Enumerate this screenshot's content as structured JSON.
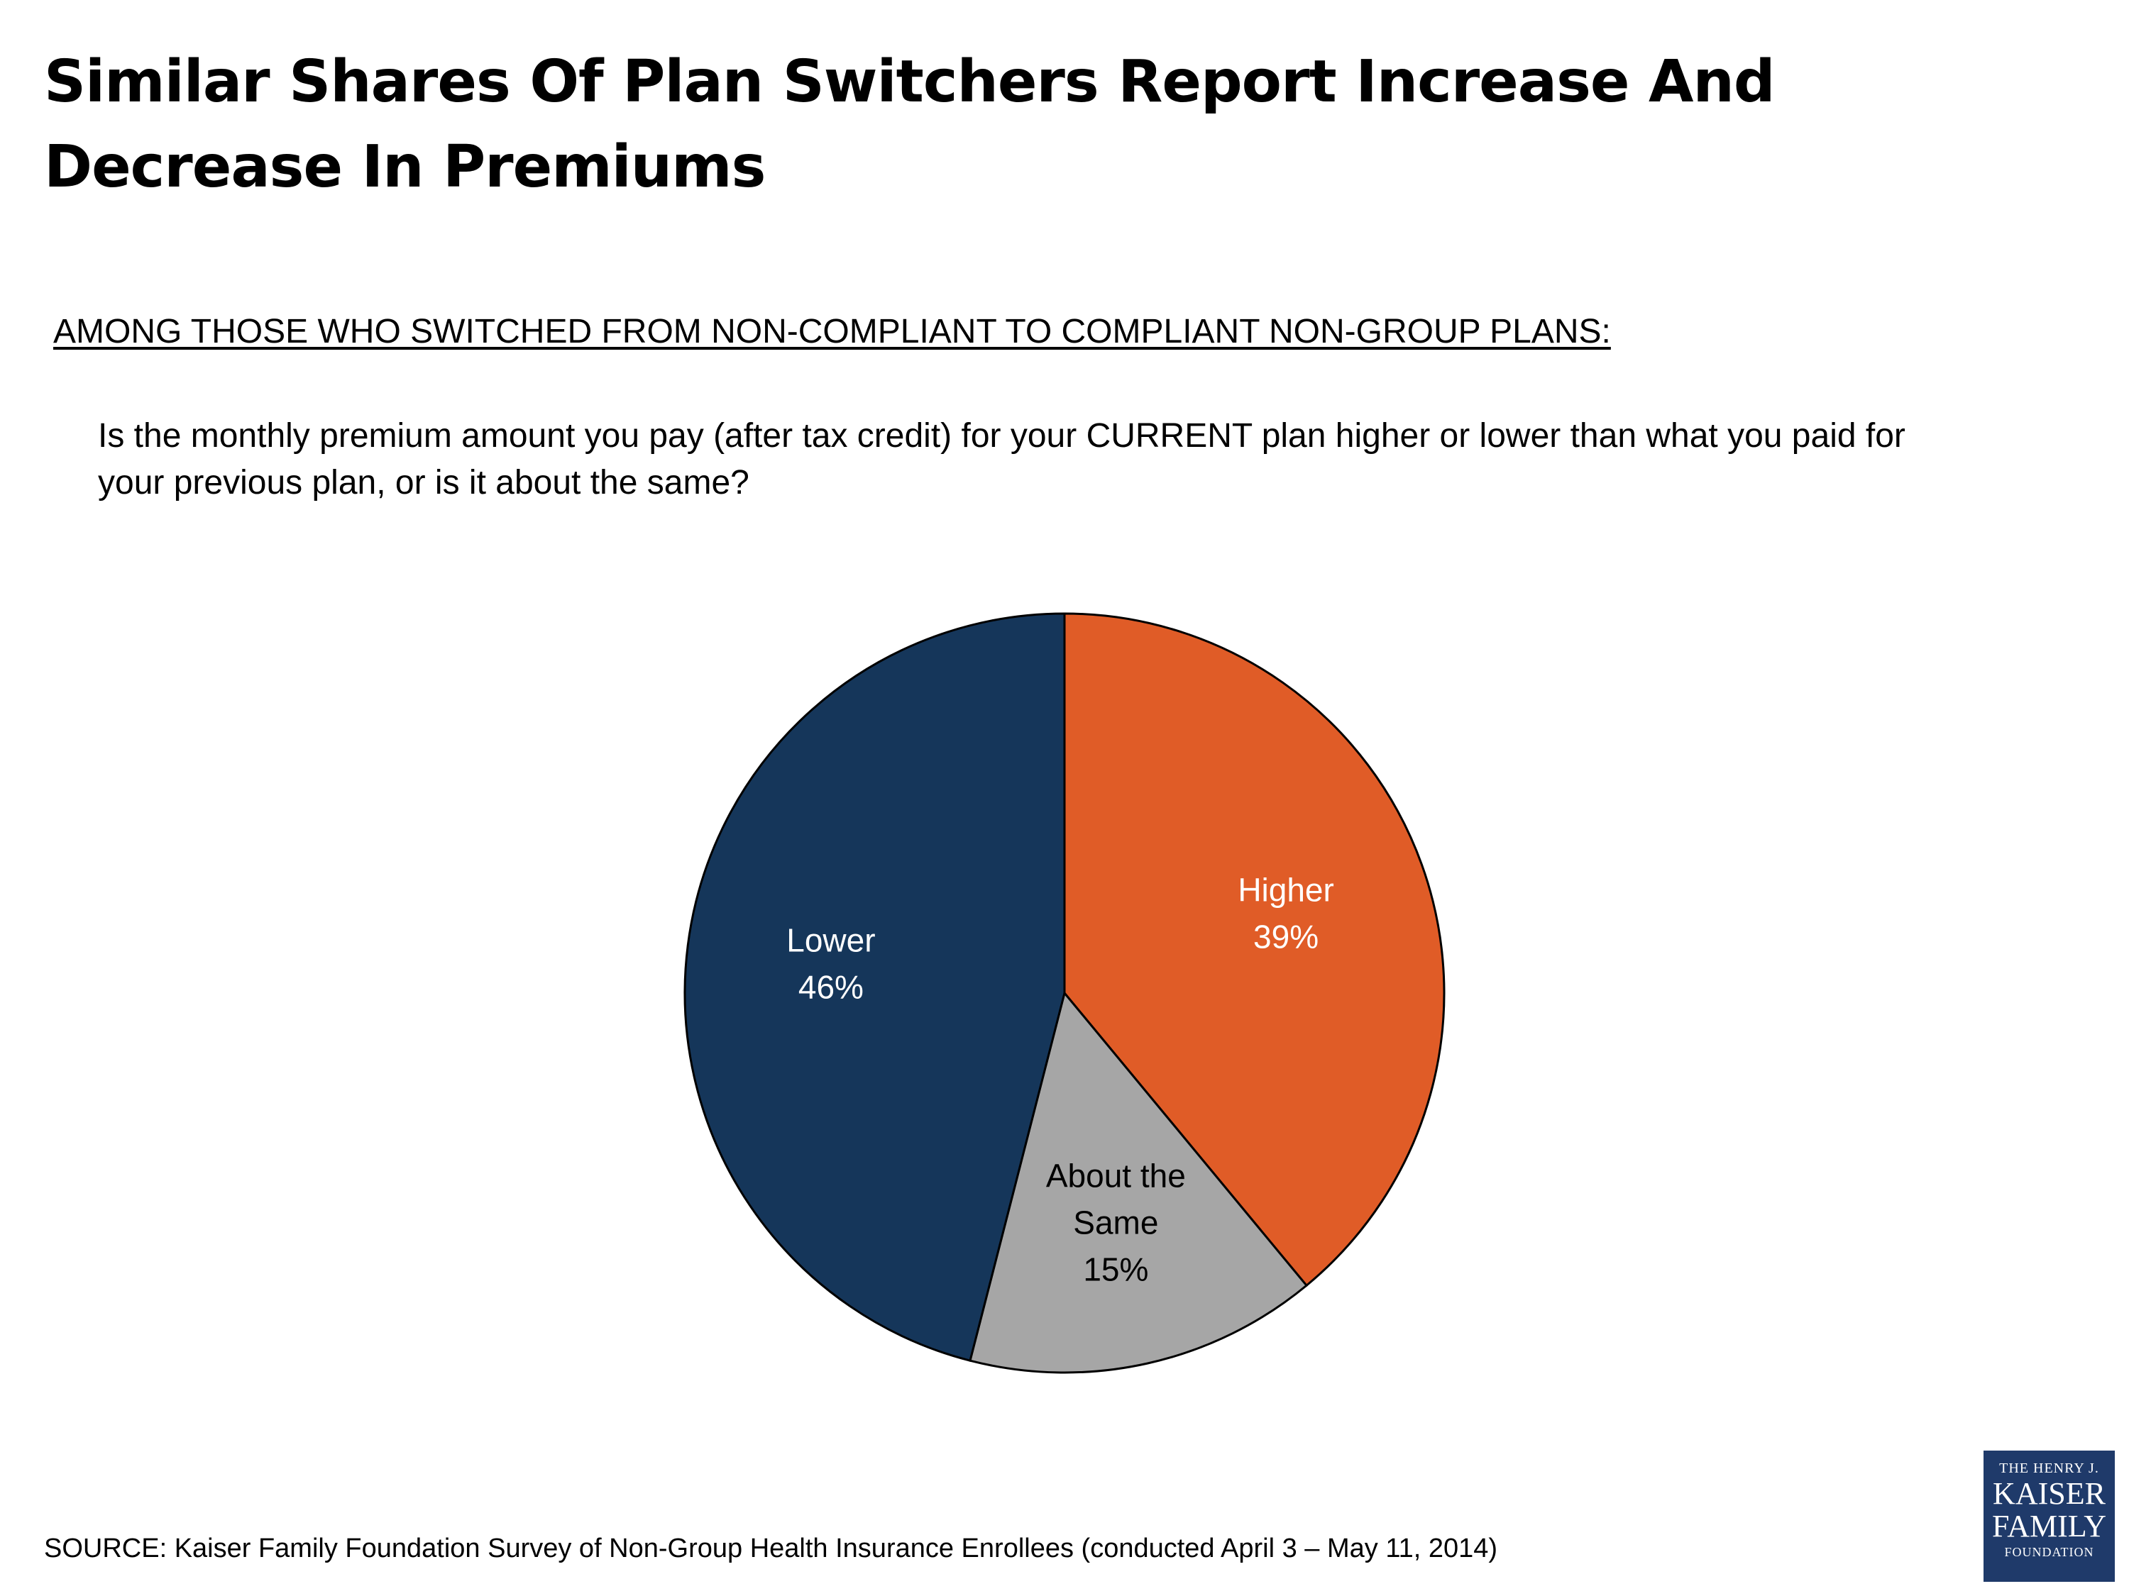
{
  "header": {
    "title": "Similar Shares Of Plan Switchers Report Increase And Decrease In Premiums",
    "subtitle": "AMONG THOSE WHO SWITCHED FROM NON-COMPLIANT TO COMPLIANT NON-GROUP PLANS:",
    "question": "Is the monthly premium amount you pay (after tax credit) for your CURRENT plan higher or lower than what you paid for your previous plan, or is it about the same?"
  },
  "chart_data": {
    "type": "pie",
    "title": "Similar Shares Of Plan Switchers Report Increase And Decrease In Premiums",
    "slices": [
      {
        "label_lines": [
          "Higher"
        ],
        "label": "Higher",
        "value": 39,
        "value_label": "39%",
        "color": "#e05c27"
      },
      {
        "label_lines": [
          "About the",
          "Same"
        ],
        "label": "About the Same",
        "value": 15,
        "value_label": "15%",
        "color": "#a6a6a6"
      },
      {
        "label_lines": [
          "Lower"
        ],
        "label": "Lower",
        "value": 46,
        "value_label": "46%",
        "color": "#15365a"
      }
    ],
    "label_colors": [
      "#ffffff",
      "#000000",
      "#ffffff"
    ],
    "start": "12 o'clock",
    "direction": "clockwise"
  },
  "footer": {
    "source": "SOURCE: Kaiser Family Foundation Survey of Non-Group Health Insurance Enrollees (conducted April 3 – May 11, 2014)"
  },
  "logo": {
    "line1": "THE HENRY J.",
    "line2": "KAISER",
    "line3": "FAMILY",
    "line4": "FOUNDATION"
  }
}
